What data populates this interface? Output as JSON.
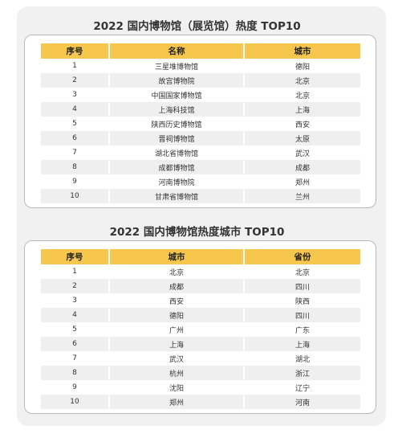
{
  "table1": {
    "title": "2022 国内博物馆（展览馆）热度 TOP10",
    "headers": [
      "序号",
      "名称",
      "城市"
    ],
    "rows": [
      [
        "1",
        "三星堆博物馆",
        "德阳"
      ],
      [
        "2",
        "故宫博物院",
        "北京"
      ],
      [
        "3",
        "中国国家博物馆",
        "北京"
      ],
      [
        "4",
        "上海科技馆",
        "上海"
      ],
      [
        "5",
        "陕西历史博物馆",
        "西安"
      ],
      [
        "6",
        "晋祠博物馆",
        "太原"
      ],
      [
        "7",
        "湖北省博物馆",
        "武汉"
      ],
      [
        "8",
        "成都博物馆",
        "成都"
      ],
      [
        "9",
        "河南博物院",
        "郑州"
      ],
      [
        "10",
        "甘肃省博物馆",
        "兰州"
      ]
    ]
  },
  "table2": {
    "title": "2022 国内博物馆热度城市 TOP10",
    "headers": [
      "序号",
      "城市",
      "省份"
    ],
    "rows": [
      [
        "1",
        "北京",
        "北京"
      ],
      [
        "2",
        "成都",
        "四川"
      ],
      [
        "3",
        "西安",
        "陕西"
      ],
      [
        "4",
        "德阳",
        "四川"
      ],
      [
        "5",
        "广州",
        "广东"
      ],
      [
        "6",
        "上海",
        "上海"
      ],
      [
        "7",
        "武汉",
        "湖北"
      ],
      [
        "8",
        "杭州",
        "浙江"
      ],
      [
        "9",
        "沈阳",
        "辽宁"
      ],
      [
        "10",
        "郑州",
        "河南"
      ]
    ]
  },
  "colors": {
    "header_bg": "#f7c64d",
    "panel_bg": "#f1f1f1",
    "stripe": "#efefef"
  }
}
